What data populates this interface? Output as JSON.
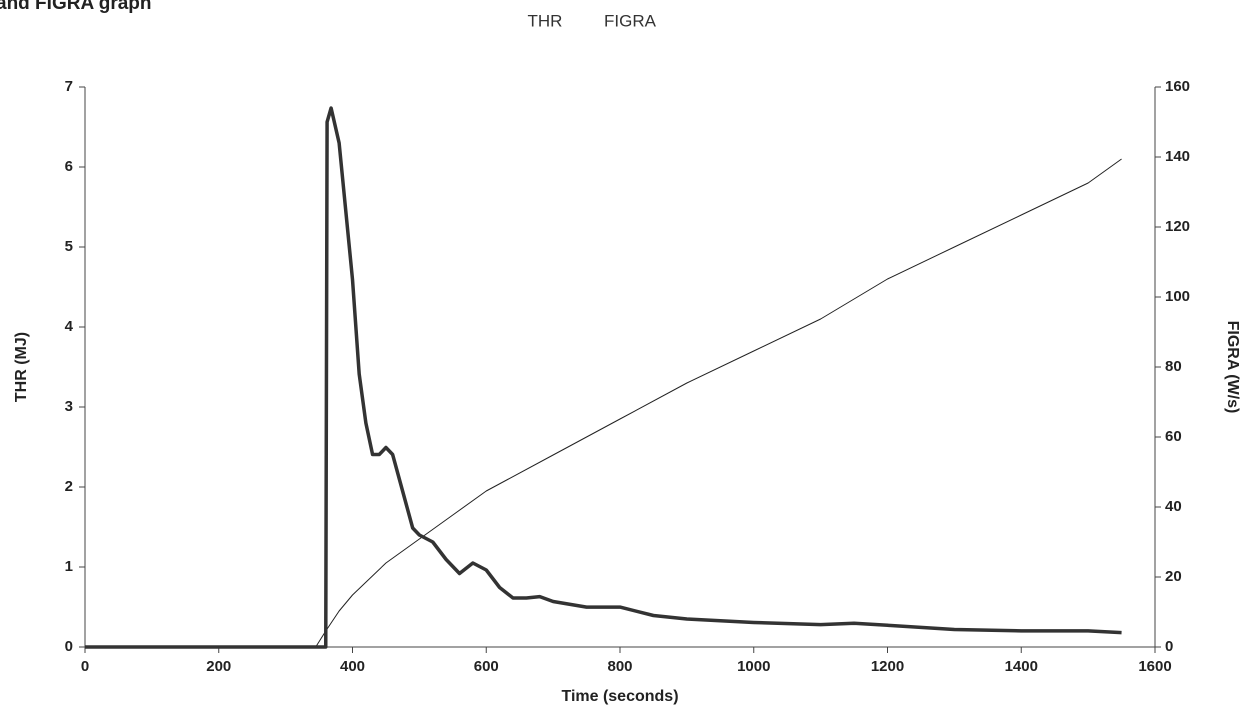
{
  "chart_data": {
    "type": "line",
    "title": "and FIGRA graph",
    "xlabel": "Time (seconds)",
    "ylabel": "THR (MJ)",
    "y2label": "FIGRA (W/s)",
    "xlim": [
      0,
      1600
    ],
    "xticks": [
      0,
      200,
      400,
      600,
      800,
      1000,
      1200,
      1400,
      1600
    ],
    "ylim": [
      0,
      7
    ],
    "yticks": [
      0,
      1,
      2,
      3,
      4,
      5,
      6,
      7
    ],
    "y2lim": [
      0,
      160
    ],
    "y2ticks": [
      0,
      20,
      40,
      60,
      80,
      100,
      120,
      140,
      160
    ],
    "grid": false,
    "series": [
      {
        "name": "THR",
        "color": "#222222",
        "width": 1,
        "x": [
          0,
          345,
          360,
          380,
          400,
          450,
          500,
          550,
          600,
          700,
          800,
          900,
          1000,
          1100,
          1200,
          1300,
          1400,
          1500,
          1550
        ],
        "values": [
          0,
          0,
          0.2,
          0.45,
          0.65,
          1.05,
          1.35,
          1.65,
          1.95,
          2.4,
          2.85,
          3.3,
          3.7,
          4.1,
          4.6,
          5.0,
          5.4,
          5.8,
          6.1
        ]
      },
      {
        "name": "FIGRA",
        "color": "#333333",
        "width": 3.5,
        "axis": "y2",
        "x": [
          0,
          360,
          362,
          368,
          380,
          400,
          410,
          420,
          430,
          440,
          450,
          460,
          470,
          480,
          490,
          500,
          520,
          540,
          560,
          580,
          600,
          620,
          640,
          660,
          680,
          700,
          750,
          800,
          850,
          900,
          1000,
          1100,
          1150,
          1200,
          1300,
          1400,
          1500,
          1550
        ],
        "values": [
          0,
          0,
          150,
          154,
          144,
          105,
          78,
          64,
          55,
          55,
          57,
          55,
          48,
          41,
          34,
          32,
          30,
          25,
          21,
          24,
          22,
          17,
          14,
          14,
          14.4,
          13,
          11.4,
          11.4,
          9,
          8,
          7,
          6.4,
          6.8,
          6.2,
          5,
          4.6,
          4.6,
          4.1
        ]
      }
    ]
  }
}
